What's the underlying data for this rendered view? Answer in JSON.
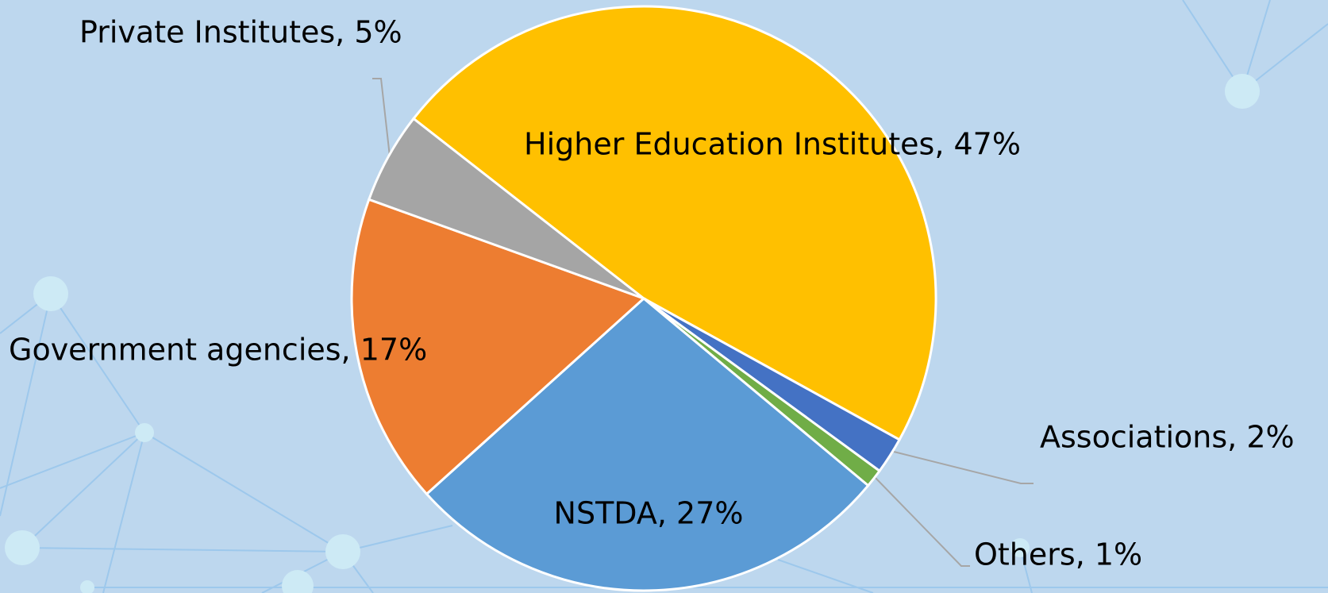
{
  "chart_data": {
    "type": "pie",
    "value_labels": [
      "Higher Education Institutes, 47%",
      "Associations, 2%",
      "Others, 1%",
      "NSTDA, 27%",
      "Government agencies, 17%",
      "Private Institutes, 5%"
    ],
    "values": [
      47,
      2,
      1,
      27,
      17,
      5
    ],
    "colors": [
      "#ffc000",
      "#4472c4",
      "#70ad47",
      "#5b9bd5",
      "#ed7d31",
      "#a5a5a5"
    ]
  }
}
